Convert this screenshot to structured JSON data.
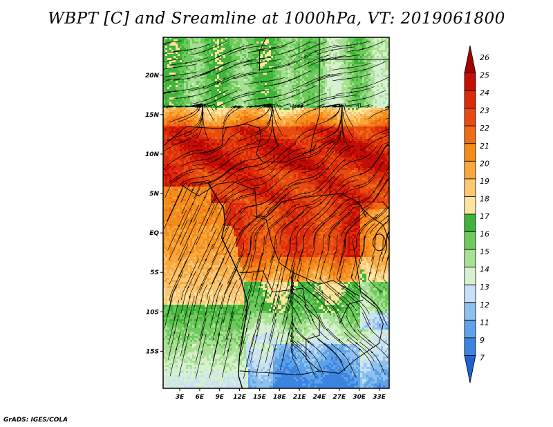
{
  "title": "WBPT [C] and Sreamline at 1000hPa, VT: 2019061800",
  "credit": "GrADS: IGES/COLA",
  "map": {
    "lat_ticks": [
      "20N",
      "15N",
      "10N",
      "5N",
      "EQ",
      "5S",
      "10S",
      "15S"
    ],
    "lat_values": [
      20,
      15,
      10,
      5,
      0,
      -5,
      -10,
      -15
    ],
    "lon_ticks": [
      "3E",
      "6E",
      "9E",
      "12E",
      "15E",
      "18E",
      "21E",
      "24E",
      "27E",
      "30E",
      "33E"
    ],
    "lon_values": [
      3,
      6,
      9,
      12,
      15,
      18,
      21,
      24,
      27,
      30,
      33
    ],
    "extent": {
      "lon_min": 0.5,
      "lon_max": 34.5,
      "lat_min": -19.7,
      "lat_max": 24.8
    }
  },
  "colorbar": {
    "labels": [
      "26",
      "25",
      "24",
      "23",
      "22",
      "21",
      "20",
      "19",
      "18",
      "17",
      "16",
      "15",
      "14",
      "13",
      "12",
      "11",
      "9",
      "7"
    ],
    "colors": [
      "#a50000",
      "#c30e05",
      "#dc2a0a",
      "#e74b10",
      "#ef6d14",
      "#f58c19",
      "#f9a83d",
      "#fbc773",
      "#fde5a0",
      "#3fb43a",
      "#6fca5d",
      "#a8e094",
      "#d7f1cf",
      "#c9e0f5",
      "#8fc1ee",
      "#5ea3e8",
      "#3a84e0",
      "#1e62d2"
    ]
  }
}
